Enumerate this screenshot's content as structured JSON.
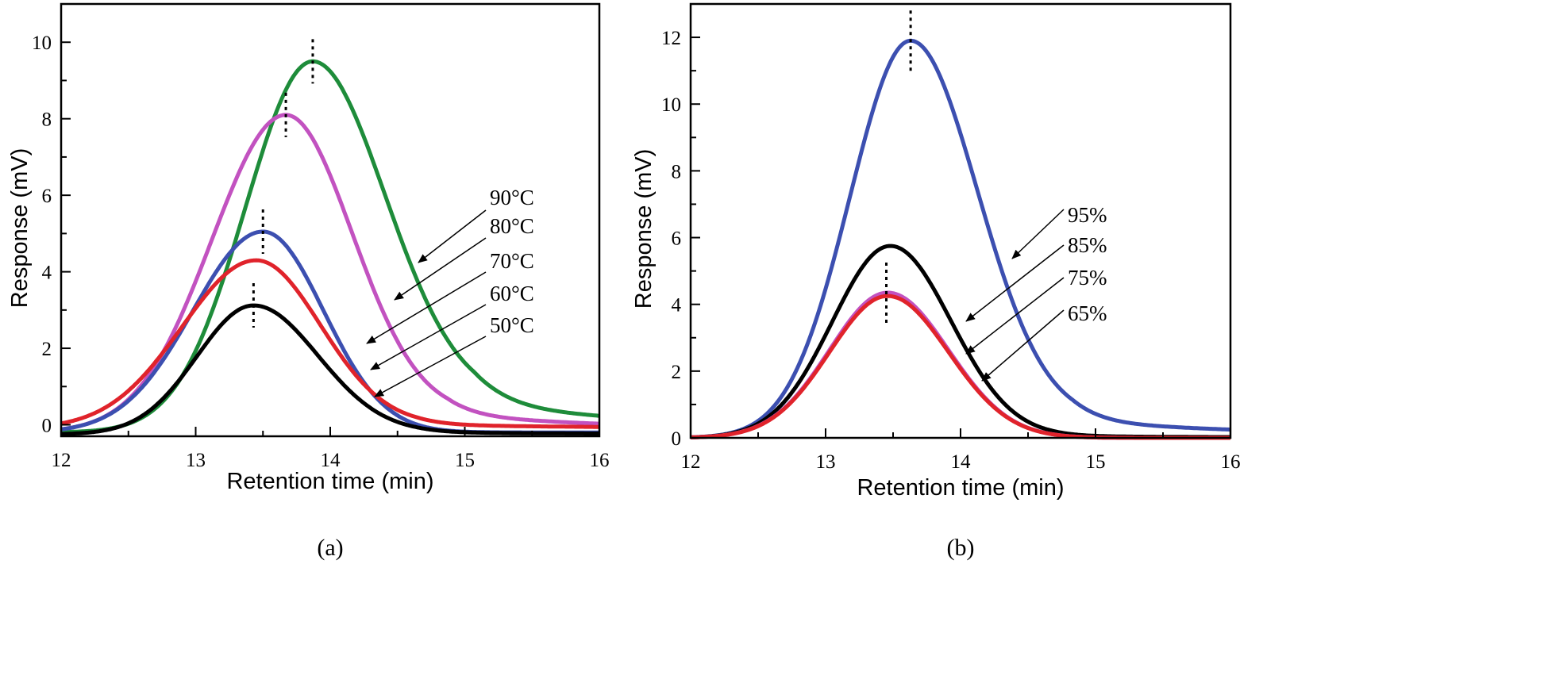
{
  "chart_data": [
    {
      "type": "line",
      "panel_label": "(a)",
      "xlabel": "Retention time (min)",
      "ylabel": "Response (mV)",
      "xlim": [
        12,
        16
      ],
      "ylim": [
        -0.3,
        11
      ],
      "xticks": [
        12,
        13,
        14,
        15,
        16
      ],
      "yticks": [
        0,
        2,
        4,
        6,
        8,
        10
      ],
      "series": [
        {
          "name": "90°C",
          "color": "#1e8c3a",
          "peak_x": 13.87,
          "peak_y": 9.5,
          "sigma_left": 0.5,
          "sigma_right": 0.55,
          "baseline": -0.2,
          "tail": 0.75
        },
        {
          "name": "80°C",
          "color": "#c252c0",
          "peak_x": 13.67,
          "peak_y": 8.1,
          "sigma_left": 0.55,
          "sigma_right": 0.5,
          "baseline": -0.2,
          "tail": 0.45
        },
        {
          "name": "70°C",
          "color": "#3c4fb0",
          "peak_x": 13.5,
          "peak_y": 5.05,
          "sigma_left": 0.52,
          "sigma_right": 0.45,
          "baseline": -0.2,
          "tail": 0.0
        },
        {
          "name": "60°C",
          "color": "#e0232b",
          "peak_x": 13.45,
          "peak_y": 4.3,
          "sigma_left": 0.55,
          "sigma_right": 0.48,
          "baseline": -0.1,
          "tail": 0.1
        },
        {
          "name": "50°C",
          "color": "#000000",
          "peak_x": 13.43,
          "peak_y": 3.12,
          "sigma_left": 0.42,
          "sigma_right": 0.48,
          "baseline": -0.25,
          "tail": 0.05
        }
      ],
      "peak_markers": [
        13.43,
        13.5,
        13.67,
        13.87
      ]
    },
    {
      "type": "line",
      "panel_label": "(b)",
      "xlabel": "Retention time (min)",
      "ylabel": "Response (mV)",
      "xlim": [
        12,
        16
      ],
      "ylim": [
        0,
        13
      ],
      "xticks": [
        12,
        13,
        14,
        15,
        16
      ],
      "yticks": [
        0,
        2,
        4,
        6,
        8,
        10,
        12
      ],
      "series": [
        {
          "name": "95%",
          "color": "#3c4fb0",
          "peak_x": 13.63,
          "peak_y": 11.9,
          "sigma_left": 0.45,
          "sigma_right": 0.5,
          "baseline": 0.0,
          "tail": 0.5
        },
        {
          "name": "85%",
          "color": "#000000",
          "peak_x": 13.48,
          "peak_y": 5.75,
          "sigma_left": 0.43,
          "sigma_right": 0.45,
          "baseline": 0.0,
          "tail": 0.05
        },
        {
          "name": "75%",
          "color": "#c252c0",
          "peak_x": 13.46,
          "peak_y": 4.35,
          "sigma_left": 0.43,
          "sigma_right": 0.45,
          "baseline": 0.0,
          "tail": 0.0
        },
        {
          "name": "65%",
          "color": "#e0232b",
          "peak_x": 13.46,
          "peak_y": 4.25,
          "sigma_left": 0.43,
          "sigma_right": 0.45,
          "baseline": 0.0,
          "tail": 0.0
        }
      ],
      "peak_markers": [
        13.45,
        13.63
      ]
    }
  ]
}
